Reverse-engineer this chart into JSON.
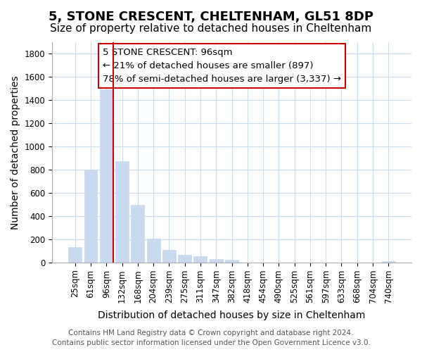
{
  "title": "5, STONE CRESCENT, CHELTENHAM, GL51 8DP",
  "subtitle": "Size of property relative to detached houses in Cheltenham",
  "xlabel": "Distribution of detached houses by size in Cheltenham",
  "ylabel": "Number of detached properties",
  "bar_labels": [
    "25sqm",
    "61sqm",
    "96sqm",
    "132sqm",
    "168sqm",
    "204sqm",
    "239sqm",
    "275sqm",
    "311sqm",
    "347sqm",
    "382sqm",
    "418sqm",
    "454sqm",
    "490sqm",
    "525sqm",
    "561sqm",
    "597sqm",
    "633sqm",
    "668sqm",
    "704sqm",
    "740sqm"
  ],
  "bar_values": [
    130,
    800,
    1490,
    875,
    495,
    205,
    105,
    65,
    50,
    30,
    20,
    0,
    0,
    0,
    0,
    0,
    0,
    0,
    0,
    0,
    10
  ],
  "bar_color": "#c9d9ef",
  "highlight_line_index": 2,
  "highlight_color": "#cc0000",
  "ylim": [
    0,
    1900
  ],
  "yticks": [
    0,
    200,
    400,
    600,
    800,
    1000,
    1200,
    1400,
    1600,
    1800
  ],
  "annotation_line1": "5 STONE CRESCENT: 96sqm",
  "annotation_line2": "← 21% of detached houses are smaller (897)",
  "annotation_line3": "78% of semi-detached houses are larger (3,337) →",
  "footer_line1": "Contains HM Land Registry data © Crown copyright and database right 2024.",
  "footer_line2": "Contains public sector information licensed under the Open Government Licence v3.0.",
  "bg_color": "#ffffff",
  "grid_color": "#ccddee",
  "title_fontsize": 13,
  "subtitle_fontsize": 11,
  "axis_label_fontsize": 10,
  "tick_fontsize": 8.5,
  "annotation_fontsize": 9.5,
  "footer_fontsize": 7.5
}
